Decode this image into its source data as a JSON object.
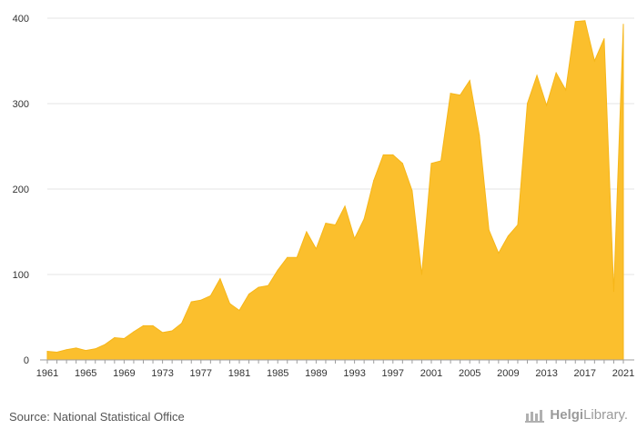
{
  "chart_data": {
    "type": "area",
    "x": [
      1961,
      1962,
      1963,
      1964,
      1965,
      1966,
      1967,
      1968,
      1969,
      1970,
      1971,
      1972,
      1973,
      1974,
      1975,
      1976,
      1977,
      1978,
      1979,
      1980,
      1981,
      1982,
      1983,
      1984,
      1985,
      1986,
      1987,
      1988,
      1989,
      1990,
      1991,
      1992,
      1993,
      1994,
      1995,
      1996,
      1997,
      1998,
      1999,
      2000,
      2001,
      2002,
      2003,
      2004,
      2005,
      2006,
      2007,
      2008,
      2009,
      2010,
      2011,
      2012,
      2013,
      2014,
      2015,
      2016,
      2017,
      2018,
      2019,
      2020,
      2021
    ],
    "values": [
      10,
      9,
      12,
      14,
      11,
      13,
      18,
      26,
      25,
      33,
      40,
      40,
      32,
      34,
      43,
      68,
      70,
      75,
      95,
      66,
      58,
      77,
      85,
      87,
      105,
      120,
      120,
      150,
      130,
      160,
      158,
      180,
      142,
      165,
      210,
      240,
      240,
      230,
      198,
      100,
      230,
      233,
      312,
      310,
      327,
      263,
      152,
      125,
      145,
      158,
      300,
      333,
      298,
      336,
      316,
      396,
      397,
      350,
      376,
      80,
      393
    ],
    "xlim": [
      1961,
      2021
    ],
    "ylim": [
      0,
      400
    ],
    "xticks": [
      "1961",
      "1965",
      "1969",
      "1973",
      "1977",
      "1981",
      "1985",
      "1989",
      "1993",
      "1997",
      "2001",
      "2005",
      "2009",
      "2013",
      "2017",
      "2021"
    ],
    "yticks": [
      "0",
      "100",
      "200",
      "300",
      "400"
    ],
    "grid": true,
    "color": "#fbbf2d",
    "title": "",
    "xlabel": "",
    "ylabel": ""
  },
  "footer": {
    "source": "Source: National Statistical Office",
    "logo_text_bold": "Helgi",
    "logo_text_light": "Library."
  }
}
